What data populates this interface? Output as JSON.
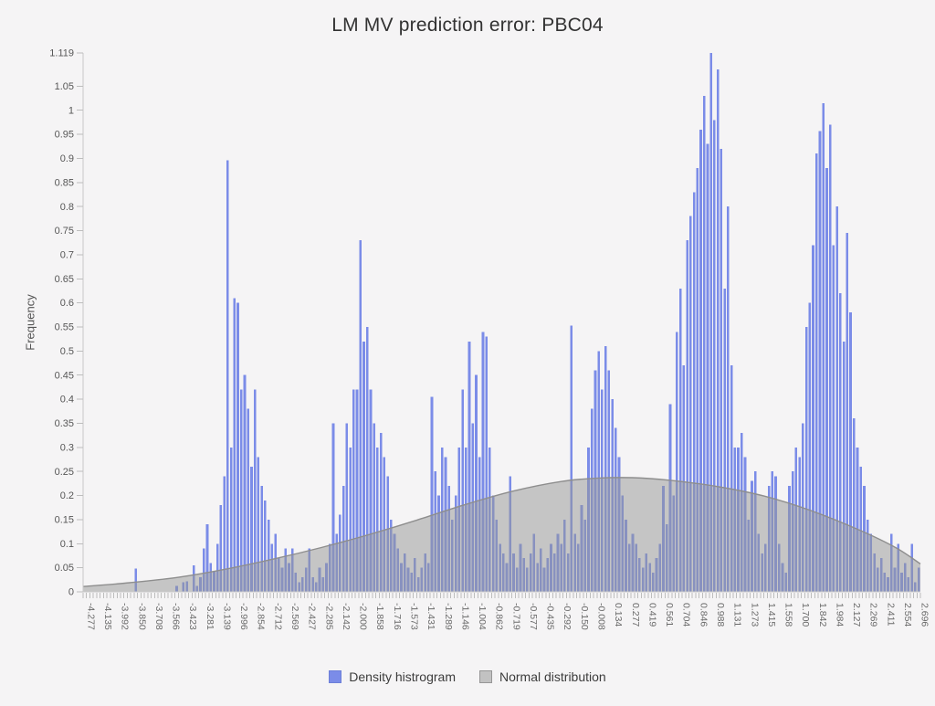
{
  "title": "LM MV prediction error: PBC04",
  "legend": {
    "histogram_label": "Density histrogram",
    "normal_label": "Normal distribution"
  },
  "colors": {
    "background": "#f5f4f5",
    "bar_fill": "#7b8ce8",
    "normal_fill": "rgba(150,150,150,0.5)",
    "normal_stroke": "#8e8e8e",
    "axis_line": "#c9c9c9",
    "tick_line": "#bdbdbd",
    "tick_text": "#6b6b6b"
  },
  "chart_data": {
    "type": "bar",
    "title": "LM MV prediction error: PBC04",
    "xlabel": "",
    "ylabel": "Frequency",
    "ylim": [
      0,
      1.119
    ],
    "grid": false,
    "legend_position": "bottom-center",
    "y_tick_labels": [
      "0",
      "0.05",
      "0.1",
      "0.15",
      "0.2",
      "0.25",
      "0.3",
      "0.35",
      "0.4",
      "0.45",
      "0.5",
      "0.55",
      "0.6",
      "0.65",
      "0.7",
      "0.75",
      "0.8",
      "0.85",
      "0.9",
      "0.95",
      "1",
      "1.05",
      "1.119"
    ],
    "x_tick_labels": [
      "-4.277",
      "-4.135",
      "-3.992",
      "-3.850",
      "-3.708",
      "-3.566",
      "-3.423",
      "-3.281",
      "-3.139",
      "-2.996",
      "-2.854",
      "-2.712",
      "-2.569",
      "-2.427",
      "-2.285",
      "-2.142",
      "-2.000",
      "-1.858",
      "-1.716",
      "-1.573",
      "-1.431",
      "-1.289",
      "-1.146",
      "-1.004",
      "-0.862",
      "-0.719",
      "-0.577",
      "-0.435",
      "-0.292",
      "-0.150",
      "-0.008",
      "0.134",
      "0.277",
      "0.419",
      "0.561",
      "0.704",
      "0.846",
      "0.988",
      "1.131",
      "1.273",
      "1.415",
      "1.558",
      "1.700",
      "1.842",
      "1.984",
      "2.127",
      "2.269",
      "2.411",
      "2.554",
      "2.696"
    ],
    "x_label_every_n_bins": 5,
    "bin_start": -4.291,
    "bin_width": 0.02845,
    "series": [
      {
        "name": "Density histrogram",
        "type": "histogram",
        "bins": [
          0,
          0,
          0,
          0,
          0,
          0,
          0,
          0,
          0,
          0,
          0,
          0,
          0,
          0,
          0,
          0.048,
          0,
          0,
          0,
          0,
          0,
          0,
          0,
          0,
          0,
          0,
          0,
          0.012,
          0,
          0.02,
          0.022,
          0,
          0.055,
          0.012,
          0.03,
          0.09,
          0.14,
          0.06,
          0.042,
          0.1,
          0.18,
          0.24,
          0.896,
          0.3,
          0.61,
          0.6,
          0.42,
          0.45,
          0.38,
          0.26,
          0.42,
          0.28,
          0.22,
          0.19,
          0.15,
          0.1,
          0.12,
          0.07,
          0.05,
          0.09,
          0.06,
          0.09,
          0.04,
          0.02,
          0.03,
          0.05,
          0.09,
          0.03,
          0.02,
          0.05,
          0.03,
          0.06,
          0.1,
          0.35,
          0.12,
          0.16,
          0.22,
          0.35,
          0.3,
          0.42,
          0.42,
          0.73,
          0.52,
          0.55,
          0.42,
          0.35,
          0.3,
          0.33,
          0.28,
          0.24,
          0.15,
          0.12,
          0.09,
          0.06,
          0.08,
          0.05,
          0.04,
          0.07,
          0.03,
          0.05,
          0.08,
          0.06,
          0.405,
          0.25,
          0.2,
          0.3,
          0.28,
          0.22,
          0.15,
          0.2,
          0.3,
          0.42,
          0.3,
          0.52,
          0.35,
          0.45,
          0.28,
          0.54,
          0.53,
          0.3,
          0.2,
          0.15,
          0.1,
          0.08,
          0.06,
          0.24,
          0.08,
          0.05,
          0.1,
          0.07,
          0.05,
          0.08,
          0.12,
          0.06,
          0.09,
          0.05,
          0.07,
          0.1,
          0.08,
          0.12,
          0.1,
          0.15,
          0.08,
          0.553,
          0.12,
          0.1,
          0.18,
          0.15,
          0.3,
          0.38,
          0.46,
          0.5,
          0.42,
          0.51,
          0.46,
          0.4,
          0.34,
          0.28,
          0.2,
          0.15,
          0.1,
          0.12,
          0.1,
          0.07,
          0.05,
          0.08,
          0.06,
          0.04,
          0.07,
          0.1,
          0.22,
          0.14,
          0.39,
          0.2,
          0.54,
          0.63,
          0.47,
          0.73,
          0.78,
          0.83,
          0.88,
          0.96,
          1.03,
          0.93,
          1.119,
          0.98,
          1.085,
          0.92,
          0.63,
          0.8,
          0.47,
          0.3,
          0.3,
          0.33,
          0.28,
          0.15,
          0.23,
          0.25,
          0.12,
          0.08,
          0.1,
          0.22,
          0.25,
          0.24,
          0.1,
          0.06,
          0.04,
          0.22,
          0.25,
          0.3,
          0.28,
          0.35,
          0.55,
          0.6,
          0.72,
          0.91,
          0.957,
          1.015,
          0.88,
          0.97,
          0.72,
          0.8,
          0.62,
          0.52,
          0.745,
          0.58,
          0.36,
          0.3,
          0.26,
          0.22,
          0.15,
          0.12,
          0.08,
          0.05,
          0.07,
          0.04,
          0.03,
          0.12,
          0.05,
          0.1,
          0.04,
          0.06,
          0.03,
          0.1,
          0.02,
          0.05
        ]
      },
      {
        "name": "Normal distribution",
        "type": "area-curve",
        "points": [
          [
            -4.291,
            0.011
          ],
          [
            -3.9,
            0.019
          ],
          [
            -3.5,
            0.03
          ],
          [
            -3.1,
            0.047
          ],
          [
            -2.7,
            0.068
          ],
          [
            -2.3,
            0.092
          ],
          [
            -1.9,
            0.119
          ],
          [
            -1.5,
            0.149
          ],
          [
            -1.1,
            0.181
          ],
          [
            -0.7,
            0.209
          ],
          [
            -0.3,
            0.229
          ],
          [
            0.0,
            0.236
          ],
          [
            0.3,
            0.237
          ],
          [
            0.6,
            0.232
          ],
          [
            1.0,
            0.219
          ],
          [
            1.4,
            0.199
          ],
          [
            1.8,
            0.168
          ],
          [
            2.2,
            0.128
          ],
          [
            2.5,
            0.092
          ],
          [
            2.708,
            0.058
          ]
        ]
      }
    ]
  }
}
